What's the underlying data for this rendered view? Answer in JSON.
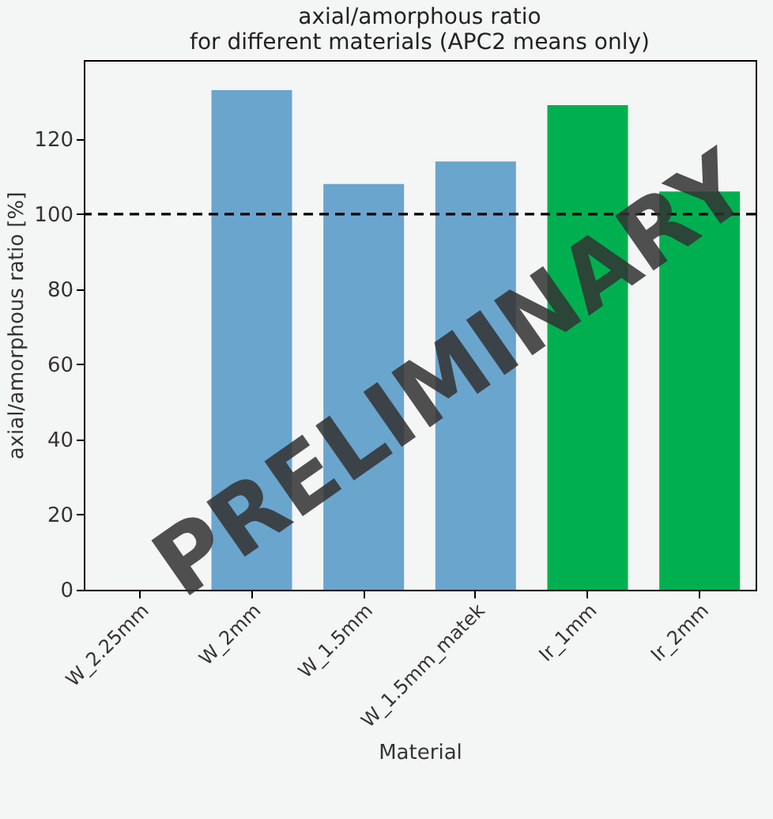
{
  "chart_data": {
    "type": "bar",
    "title": "axial/amorphous ratio\nfor different materials (APC2 means only)",
    "xlabel": "Material",
    "ylabel": "axial/amorphous ratio [%]",
    "categories": [
      "W_2.25mm",
      "W_2mm",
      "W_1.5mm",
      "W_1.5mm_matek",
      "Ir_1mm",
      "Ir_2mm"
    ],
    "values": [
      null,
      133,
      108,
      114,
      129,
      106
    ],
    "colors": [
      "#6aa5cd",
      "#6aa5cd",
      "#6aa5cd",
      "#6aa5cd",
      "#00b050",
      "#00b050"
    ],
    "ylim": [
      0,
      141
    ],
    "yticks": [
      0,
      20,
      40,
      60,
      80,
      100,
      120
    ],
    "ref_lines": [
      {
        "axis": "y",
        "value": 100,
        "color": "#000000",
        "line_style": "dashed"
      }
    ],
    "annotations": [
      "PRELIMINARY"
    ]
  }
}
